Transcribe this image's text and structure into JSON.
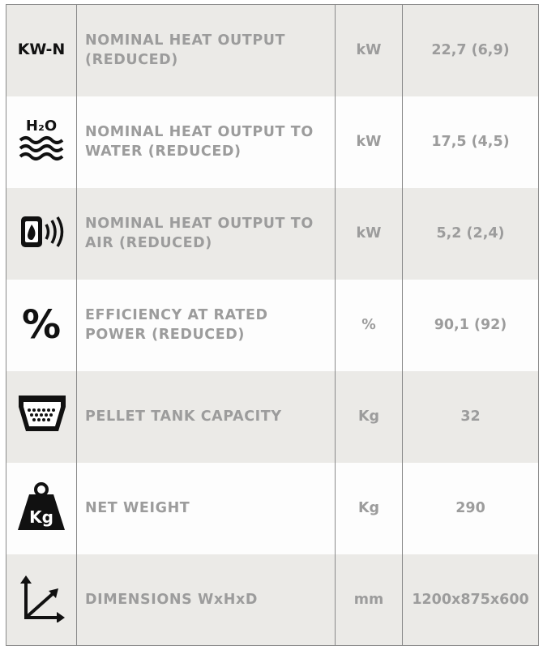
{
  "table": {
    "rows": [
      {
        "icon": "KW-N",
        "label": "NOMINAL HEAT OUTPUT (REDUCED)",
        "unit": "kW",
        "value": "22,7 (6,9)"
      },
      {
        "icon": "H₂O",
        "label": "NOMINAL HEAT OUTPUT TO WATER (REDUCED)",
        "unit": "kW",
        "value": "17,5 (4,5)"
      },
      {
        "label": "NOMINAL HEAT OUTPUT TO AIR (REDUCED)",
        "unit": "kW",
        "value": "5,2 (2,4)"
      },
      {
        "icon": "%",
        "label": "EFFICIENCY AT RATED POWER (REDUCED)",
        "unit": "%",
        "value": "90,1 (92)"
      },
      {
        "label": "PELLET TANK CAPACITY",
        "unit": "Kg",
        "value": "32"
      },
      {
        "icon": "Kg",
        "label": "NET WEIGHT",
        "unit": "Kg",
        "value": "290"
      },
      {
        "label": "DIMENSIONS WxHxD",
        "unit": "mm",
        "value": "1200x875x600"
      }
    ]
  }
}
